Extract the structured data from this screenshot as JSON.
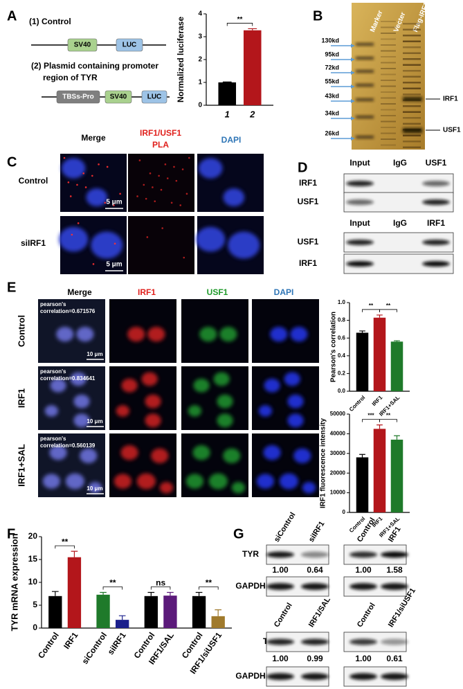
{
  "panel_labels": [
    "A",
    "B",
    "C",
    "D",
    "E",
    "F",
    "G"
  ],
  "panel_a": {
    "construct_1": "(1) Control",
    "construct_1_parts": [
      "SV40",
      "LUC"
    ],
    "construct_2": [
      "(2) Plasmid containing promoter",
      "region of TYR"
    ],
    "construct_2_parts": [
      "TBSs-Pro",
      "SV40",
      "LUC"
    ]
  },
  "panel_b": {
    "lanes": [
      "Marker",
      "Vecter",
      "Flag-IRF1"
    ],
    "markers": [
      "130kd",
      "95kd",
      "72kd",
      "55kd",
      "43kd",
      "34kd",
      "26kd"
    ],
    "bands": [
      "IRF1",
      "USF1"
    ]
  },
  "panel_c": {
    "headers": [
      "Merge",
      "DAPI"
    ],
    "pla_header": [
      "IRF1/USF1",
      "PLA"
    ],
    "rows": [
      "Control",
      "siIRF1"
    ],
    "scale_bars": [
      "5 μm",
      "5 μm"
    ]
  },
  "panel_d": {
    "top": {
      "headers": [
        "Input",
        "IgG",
        "USF1"
      ],
      "rows": [
        "IRF1",
        "USF1"
      ]
    },
    "bottom": {
      "headers": [
        "Input",
        "IgG",
        "IRF1"
      ],
      "rows": [
        "USF1",
        "IRF1"
      ]
    }
  },
  "panel_e": {
    "headers": [
      "Merge",
      "IRF1",
      "USF1",
      "DAPI"
    ],
    "rows": [
      "Control",
      "IRF1",
      "IRF1+SAL"
    ],
    "pearson": [
      [
        "pearson's",
        "correlation=0.671576"
      ],
      [
        "pearson's",
        "correlation=0.834641"
      ],
      [
        "pearson's",
        "correlation=0.560139"
      ]
    ],
    "scale_bars": [
      "10 μm",
      "10 μm",
      "10 μm"
    ]
  },
  "panel_g": {
    "top_rows": [
      "TYR",
      "GAPDH"
    ],
    "bottom_rows": [
      "TYR",
      "GAPDH"
    ],
    "blots": [
      {
        "headers": [
          "siControl",
          "siIRF1"
        ],
        "ratios": [
          "1.00",
          "0.64"
        ]
      },
      {
        "headers": [
          "Control",
          "IRF1"
        ],
        "ratios": [
          "1.00",
          "1.58"
        ]
      },
      {
        "headers": [
          "Control",
          "IRF1/SAL"
        ],
        "ratios": [
          "1.00",
          "0.99"
        ]
      },
      {
        "headers": [
          "Control",
          "IRF1/siUSF1"
        ],
        "ratios": [
          "1.00",
          "0.61"
        ]
      }
    ]
  },
  "chart_data": [
    {
      "type": "bar",
      "ylabel": "Normalized luciferase",
      "categories": [
        "1",
        "2"
      ],
      "values": [
        1.0,
        3.28
      ],
      "errors": [
        0.02,
        0.07
      ],
      "colors": [
        "#000000",
        "#b3161b"
      ],
      "ylim": [
        0,
        4
      ],
      "yticks": [
        0,
        1,
        2,
        3,
        4
      ],
      "annotations": [
        "**"
      ]
    },
    {
      "type": "bar",
      "ylabel": "Pearson's correlation",
      "categories": [
        "Control",
        "IRF1",
        "IRF1+SAL"
      ],
      "values": [
        0.66,
        0.83,
        0.56
      ],
      "errors": [
        0.02,
        0.03,
        0.01
      ],
      "colors": [
        "#000000",
        "#b3161b",
        "#1f7a2a"
      ],
      "ylim": [
        0,
        1
      ],
      "yticks": [
        {
          "value": 0,
          "label": "0.0"
        },
        0.2,
        0.4,
        0.6,
        0.8,
        {
          "value": 1,
          "label": "1.0"
        }
      ],
      "annotations": [
        "**",
        "**"
      ]
    },
    {
      "type": "bar",
      "ylabel": "IRF1 fluorescence intensity",
      "categories": [
        "Control",
        "IRF1",
        "IRF1+SAL"
      ],
      "values": [
        28000,
        42500,
        37000
      ],
      "errors": [
        1500,
        2000,
        2000
      ],
      "colors": [
        "#000000",
        "#b3161b",
        "#1f7a2a"
      ],
      "ylim": [
        0,
        50000
      ],
      "yticks": [
        0,
        10000,
        20000,
        30000,
        40000,
        50000
      ],
      "annotations": [
        "***",
        "**"
      ]
    },
    {
      "type": "bar",
      "ylabel": "TYR mRNA expression",
      "categories": [
        "Control",
        "IRF1",
        "siControl",
        "siIRF1",
        "Control",
        "IRF1/SAL",
        "Control",
        "IRF1/siUSF1"
      ],
      "values": [
        7.0,
        15.5,
        7.3,
        1.8,
        7.0,
        7.1,
        7.0,
        2.6
      ],
      "errors": [
        1.0,
        1.3,
        0.5,
        0.9,
        0.8,
        0.7,
        0.8,
        1.4
      ],
      "colors": [
        "#000000",
        "#b3161b",
        "#1f7a2a",
        "#1a1f8c",
        "#000000",
        "#5b1a7a",
        "#000000",
        "#a07a2c"
      ],
      "ylim": [
        0,
        20
      ],
      "yticks": [
        0,
        5,
        10,
        15,
        20
      ],
      "annotations": [
        "**",
        "**",
        "ns",
        "**"
      ]
    }
  ]
}
